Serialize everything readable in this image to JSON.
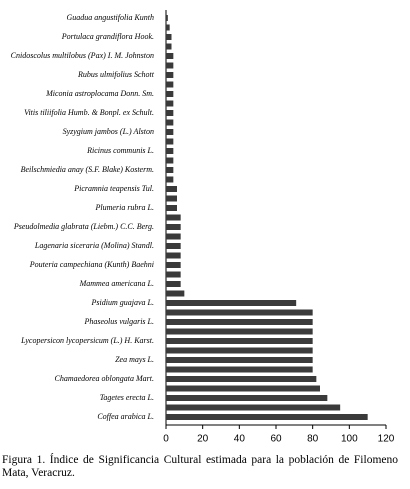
{
  "chart_data": {
    "type": "barh",
    "categories": [
      "Guadua angustifolia Kunth",
      null,
      "Portulaca grandiflora Hook.",
      null,
      "Cnidoscolus multilobus (Pax) I. M. Johnston",
      null,
      "Rubus ulmifolius Schott",
      null,
      "Miconia astroplocama Donn. Sm.",
      null,
      "Vitis tiliifolia Humb. & Bonpl. ex Schult.",
      null,
      "Syzygium jambos (L.) Alston",
      null,
      "Ricinus communis L.",
      null,
      "Beilschmiedia anay (S.F. Blake) Kosterm.",
      null,
      "Picramnia teapensis Tul.",
      null,
      "Plumeria rubra L.",
      null,
      "Pseudolmedia glabrata (Liebm.) C.C. Berg.",
      null,
      "Lagenaria siceraria (Molina) Standl.",
      null,
      "Pouteria campechiana (Kunth) Baehni",
      null,
      "Mammea americana L.",
      null,
      "Psidium guajava L.",
      null,
      "Phaseolus vulgaris L.",
      null,
      "Lycopersicon lycopersicum (L.) H. Karst.",
      null,
      "Zea mays L.",
      null,
      "Chamaedorea oblongata Mart.",
      null,
      "Tagetes erecta L.",
      null,
      "Coffea arabica L."
    ],
    "values": [
      1,
      2,
      3,
      3,
      4,
      4,
      4,
      4,
      4,
      4,
      4,
      4,
      4,
      4,
      4,
      4,
      4,
      4,
      6,
      6,
      6,
      8,
      8,
      8,
      8,
      8,
      8,
      8,
      8,
      10,
      71,
      80,
      80,
      80,
      80,
      80,
      80,
      80,
      82,
      84,
      88,
      95,
      110
    ],
    "color": "#3a3a3a",
    "xlim": [
      0,
      120
    ],
    "xticks": [
      0,
      20,
      40,
      60,
      80,
      100,
      120
    ],
    "caption": "Figura 1. Índice de Significancia Cultural estimada para la población de Filomeno Mata, Veracruz."
  }
}
